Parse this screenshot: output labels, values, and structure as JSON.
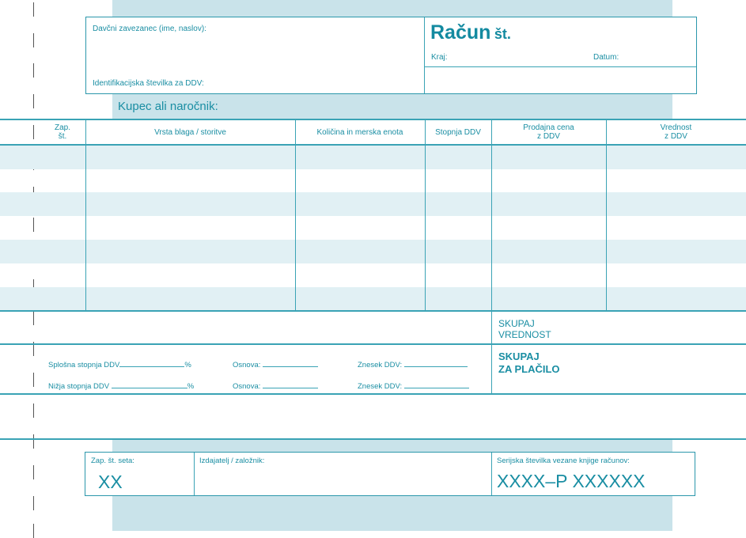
{
  "issuer": {
    "label": "Davčni zavezanec (ime, naslov):",
    "vat_id_label": "Identifikacijska številka za DDV:"
  },
  "invoice": {
    "title": "Račun",
    "number_label": "št.",
    "place_label": "Kraj:",
    "date_label": "Datum:"
  },
  "buyer_label": "Kupec ali naročnik:",
  "table": {
    "columns": [
      {
        "line1": "Zap.",
        "line2": "št."
      },
      {
        "line1": "Vrsta blaga / storitve",
        "line2": ""
      },
      {
        "line1": "Količina in merska enota",
        "line2": ""
      },
      {
        "line1": "Stopnja DDV",
        "line2": ""
      },
      {
        "line1": "Prodajna cena",
        "line2": "z DDV"
      },
      {
        "line1": "Vrednost",
        "line2": "z DDV"
      }
    ]
  },
  "totals": {
    "total_value_1": "SKUPAJ",
    "total_value_2": "VREDNOST",
    "total_pay_1": "SKUPAJ",
    "total_pay_2": "ZA PLAČILO"
  },
  "vat": {
    "general_rate": "Splošna stopnja DDV",
    "lower_rate": "Nižja stopnja DDV",
    "percent": "%",
    "base": "Osnova:",
    "amount": "Znesek DDV:"
  },
  "footer": {
    "set_no_label": "Zap. št. seta:",
    "set_no_value": "XX",
    "publisher_label": "Izdajatelj / založnik:",
    "serial_label": "Serijska številka vezane knjige računov:",
    "serial_value": "XXXX–P XXXXXX"
  },
  "colors": {
    "accent": "#1a8ea3",
    "band": "#c9e3ea",
    "stripe": "#e1f0f4"
  }
}
